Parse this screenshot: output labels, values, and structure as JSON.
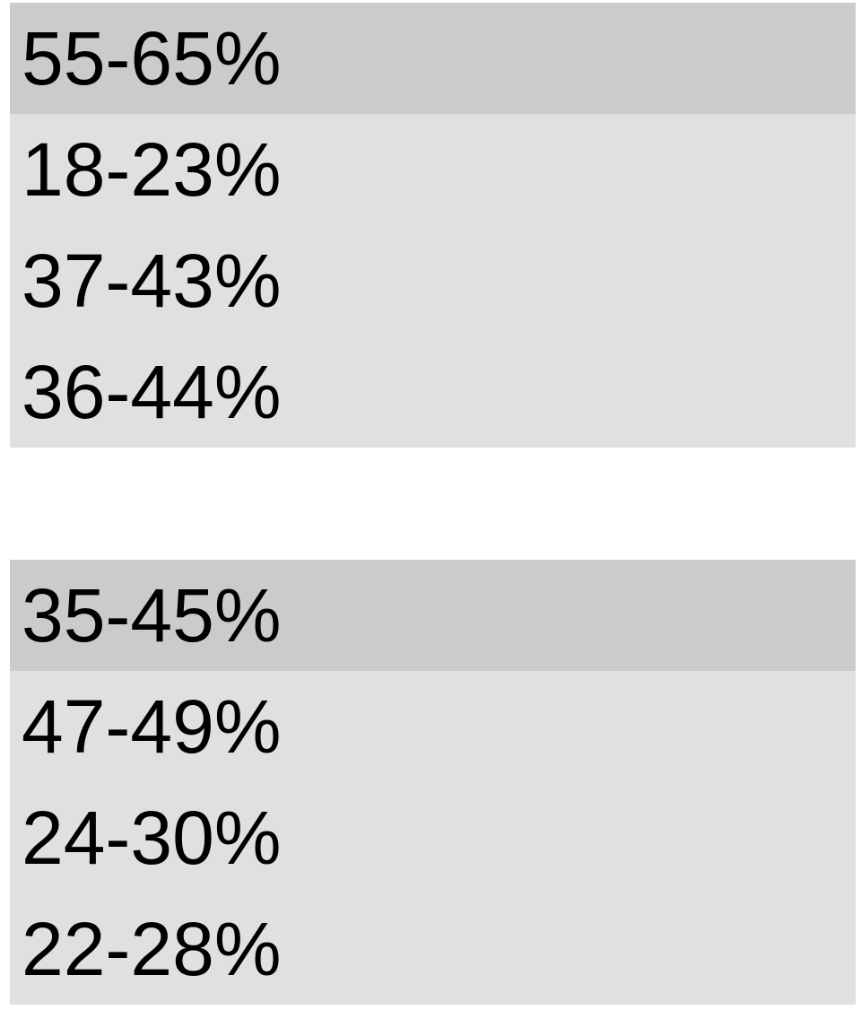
{
  "colors": {
    "header_row_bg": "#cbcbcb",
    "body_row_bg": "#e0e0e0",
    "text": "#000000",
    "page_bg": "#ffffff"
  },
  "tables": [
    {
      "rows": [
        "55-65%",
        "18-23%",
        "37-43%",
        "36-44%"
      ]
    },
    {
      "rows": [
        "35-45%",
        "47-49%",
        "24-30%",
        "22-28%"
      ]
    }
  ]
}
